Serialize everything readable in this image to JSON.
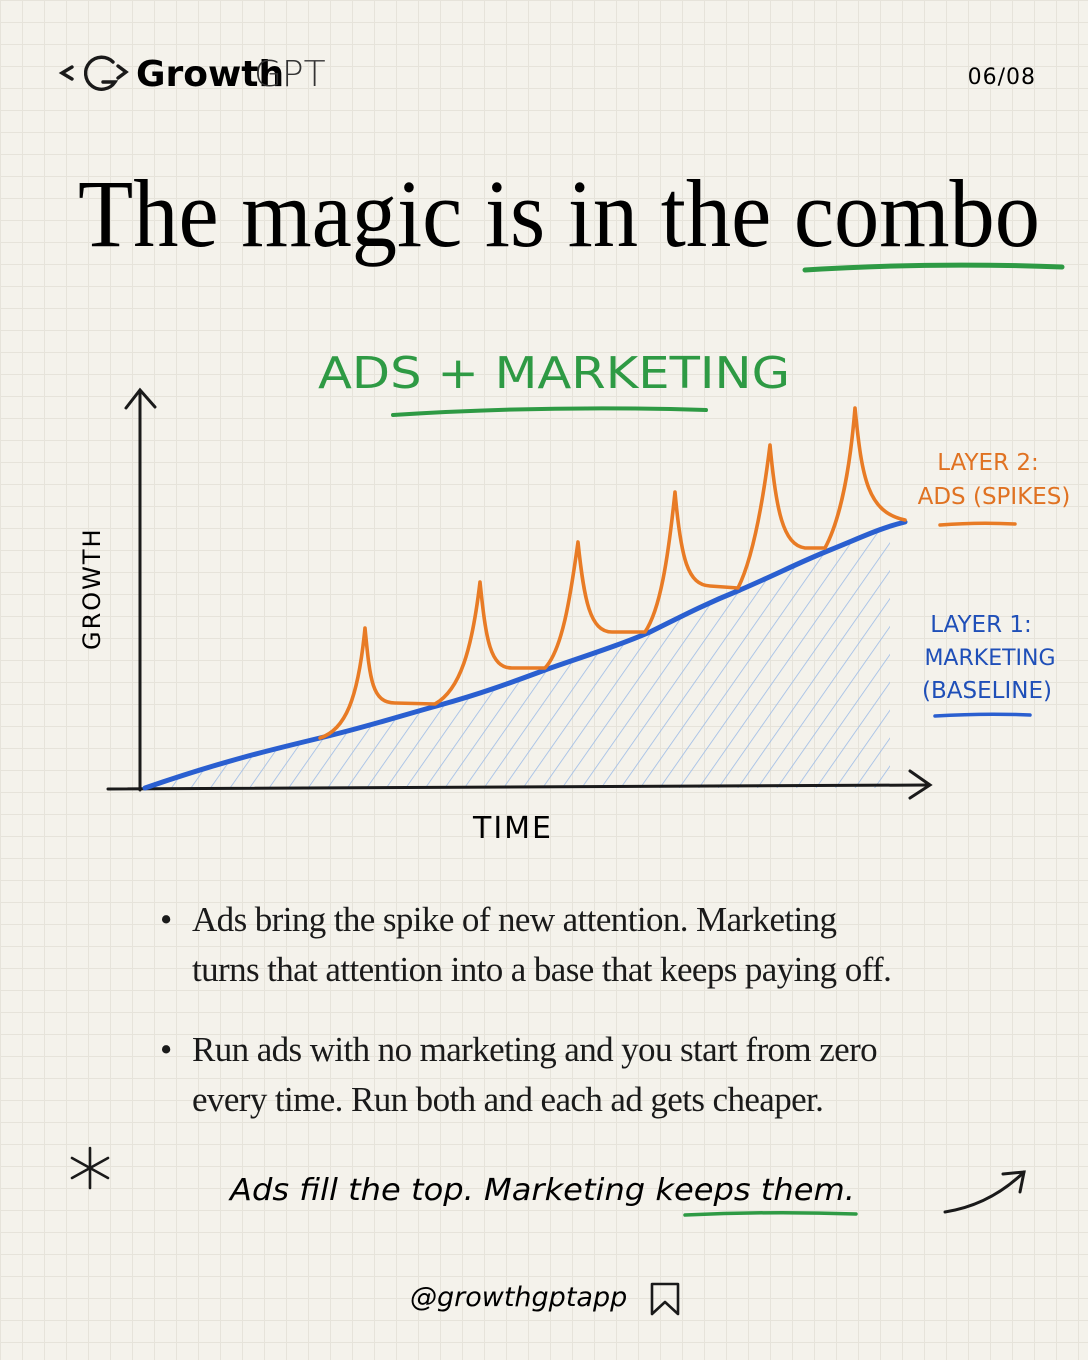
{
  "header": {
    "brand_bold": "Growth",
    "brand_light": "GPT",
    "page": "06/08"
  },
  "title": "The magic is in the combo",
  "chart": {
    "title": "ADS + MARKETING",
    "y_label": "GROWTH",
    "x_label": "TIME",
    "layers": [
      {
        "lines": [
          "LAYER 2:",
          "ADS (SPIKES)"
        ]
      },
      {
        "lines": [
          "LAYER 1:",
          "MARKETING",
          "(BASELINE)"
        ]
      }
    ]
  },
  "bullets": [
    "Ads bring the spike of new attention. Marketing turns that attention into a base that keeps paying off.",
    "Run ads with no marketing and you start from zero every time. Run both and each ad gets cheaper."
  ],
  "tagline": "Ads fill the top. Marketing keeps them.",
  "handle": "@growthgptapp"
}
